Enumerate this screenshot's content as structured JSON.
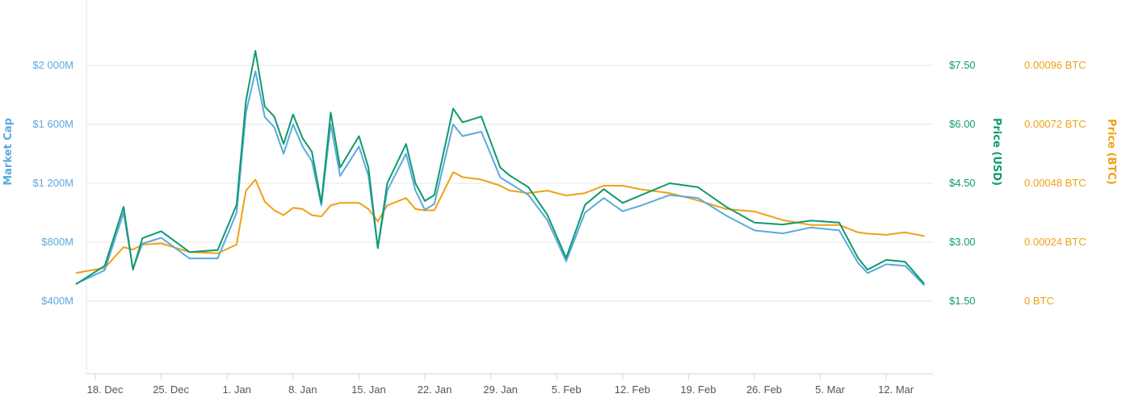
{
  "chart_data": {
    "type": "line",
    "title": "",
    "axes": {
      "left": {
        "label": "Market Cap",
        "color": "#5aaadc",
        "ticks": [
          "$400M",
          "$800M",
          "$1 200M",
          "$1 600M",
          "$2 000M"
        ],
        "tick_values": [
          400,
          800,
          1200,
          1600,
          2000
        ],
        "range": [
          400,
          2000
        ]
      },
      "right_usd": {
        "label": "Price (USD)",
        "color": "#0f9a6e",
        "ticks": [
          "$1.50",
          "$3.00",
          "$4.50",
          "$6.00",
          "$7.50"
        ],
        "tick_values": [
          1.5,
          3.0,
          4.5,
          6.0,
          7.5
        ],
        "range": [
          1.5,
          7.5
        ]
      },
      "right_btc": {
        "label": "Price (BTC)",
        "color": "#f0a015",
        "ticks": [
          "0 BTC",
          "0.00024 BTC",
          "0.00048 BTC",
          "0.00072 BTC",
          "0.00096 BTC"
        ],
        "tick_values": [
          0,
          0.00024,
          0.00048,
          0.00072,
          0.00096
        ],
        "range": [
          0,
          0.00096
        ]
      }
    },
    "x_ticks": [
      "18. Dec",
      "25. Dec",
      "1. Jan",
      "8. Jan",
      "15. Jan",
      "22. Jan",
      "29. Jan",
      "5. Feb",
      "12. Feb",
      "19. Feb",
      "26. Feb",
      "5. Mar",
      "12. Mar"
    ],
    "x": [
      "12-16",
      "12-19",
      "12-21",
      "12-22",
      "12-23",
      "12-25",
      "12-28",
      "12-31",
      "01-02",
      "01-03",
      "01-04",
      "01-05",
      "01-06",
      "01-07",
      "01-08",
      "01-09",
      "01-10",
      "01-11",
      "01-12",
      "01-13",
      "01-15",
      "01-16",
      "01-17",
      "01-18",
      "01-20",
      "01-21",
      "01-22",
      "01-23",
      "01-25",
      "01-26",
      "01-28",
      "01-30",
      "01-31",
      "02-02",
      "02-04",
      "02-06",
      "02-08",
      "02-10",
      "02-12",
      "02-14",
      "02-17",
      "02-20",
      "02-23",
      "02-26",
      "03-01",
      "03-04",
      "03-07",
      "03-09",
      "03-10",
      "03-12",
      "03-14",
      "03-16"
    ],
    "series": [
      {
        "name": "Market Cap",
        "axis": "left",
        "color": "#5aaadc",
        "values": [
          520,
          610,
          1000,
          620,
          790,
          830,
          690,
          690,
          1000,
          1680,
          1960,
          1650,
          1580,
          1400,
          1600,
          1450,
          1350,
          1050,
          1600,
          1250,
          1450,
          1250,
          760,
          1150,
          1400,
          1150,
          1020,
          1060,
          1600,
          1520,
          1550,
          1240,
          1200,
          1120,
          950,
          670,
          1000,
          1100,
          1010,
          1050,
          1120,
          1100,
          980,
          880,
          860,
          900,
          880,
          660,
          590,
          650,
          640,
          510
        ]
      },
      {
        "name": "Price (USD)",
        "axis": "right_usd",
        "color": "#0f9a6e",
        "values": [
          1.94,
          2.4,
          3.9,
          2.3,
          3.1,
          3.28,
          2.75,
          2.8,
          3.95,
          6.6,
          7.87,
          6.45,
          6.2,
          5.5,
          6.25,
          5.65,
          5.3,
          4.0,
          6.3,
          4.9,
          5.7,
          4.9,
          2.85,
          4.5,
          5.5,
          4.5,
          4.05,
          4.2,
          6.4,
          6.05,
          6.2,
          4.9,
          4.7,
          4.4,
          3.7,
          2.6,
          3.95,
          4.35,
          4.0,
          4.2,
          4.5,
          4.4,
          3.9,
          3.5,
          3.45,
          3.55,
          3.5,
          2.6,
          2.3,
          2.55,
          2.5,
          1.95
        ]
      },
      {
        "name": "Price (BTC)",
        "axis": "right_btc",
        "color": "#f0a015",
        "values": [
          0.000115,
          0.000135,
          0.00022,
          0.00021,
          0.00023,
          0.000235,
          0.0002,
          0.000195,
          0.00023,
          0.00045,
          0.000495,
          0.000405,
          0.00037,
          0.00035,
          0.00038,
          0.000375,
          0.00035,
          0.000345,
          0.00039,
          0.0004,
          0.0004,
          0.000375,
          0.000325,
          0.00039,
          0.00042,
          0.000375,
          0.00037,
          0.00037,
          0.000525,
          0.000505,
          0.000495,
          0.00047,
          0.00045,
          0.00044,
          0.00045,
          0.00043,
          0.00044,
          0.00047,
          0.00047,
          0.000455,
          0.00044,
          0.00041,
          0.000375,
          0.000365,
          0.00033,
          0.00031,
          0.00031,
          0.00028,
          0.000275,
          0.00027,
          0.00028,
          0.000265
        ]
      }
    ],
    "grid": true,
    "legend": "none"
  }
}
